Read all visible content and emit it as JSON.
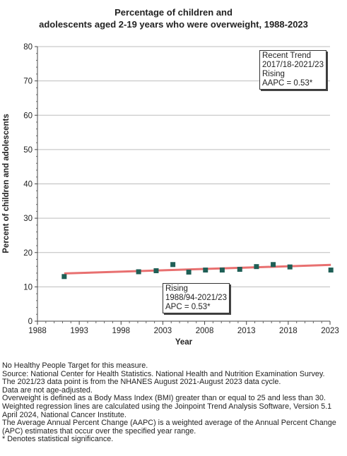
{
  "title_lines": [
    "Percentage of children and",
    "adolescents aged 2-19 years who were overweight, 1988-2023"
  ],
  "chart_data": {
    "type": "scatter",
    "title": "Percentage of children and adolescents aged 2-19 years who were overweight, 1988-2023",
    "xlabel": "Year",
    "ylabel": "Percent of children and adolescents",
    "xlim": [
      1988,
      2023
    ],
    "ylim": [
      0,
      80
    ],
    "x_ticks": [
      "1988",
      "1993",
      "1998",
      "2003",
      "2008",
      "2013",
      "2018",
      "2023"
    ],
    "y_ticks": [
      "0",
      "10",
      "20",
      "30",
      "40",
      "50",
      "60",
      "70",
      "80"
    ],
    "grid": true,
    "points": {
      "x": [
        1991.2,
        2000.1,
        2002.2,
        2004.2,
        2006.1,
        2008.1,
        2010.1,
        2012.2,
        2014.2,
        2016.2,
        2018.2,
        2023.1
      ],
      "y": [
        13.0,
        14.4,
        14.7,
        16.5,
        14.3,
        14.9,
        14.9,
        15.1,
        15.9,
        16.5,
        15.8,
        14.9
      ],
      "color": "#1f5f56"
    },
    "trend_line": {
      "x": [
        1991.2,
        2023.1
      ],
      "y": [
        13.9,
        16.4
      ],
      "color": "#e87070"
    }
  },
  "annotations": {
    "recent": [
      "Recent Trend",
      "2017/18-2021/23",
      "Rising",
      "AAPC =  0.53*"
    ],
    "overall": [
      "Rising",
      "1988/94-2021/23",
      "APC =  0.53*"
    ]
  },
  "notes": [
    "No Healthy People Target for this measure.",
    "Source: National Center for Health Statistics. National Health and Nutrition Examination Survey.",
    "The 2021/23 data point is from the NHANES August 2021-August 2023 data cycle.",
    "Data are not age-adjusted.",
    "Overweight is defined as a Body Mass Index (BMI) greater than or equal to 25 and less than 30.",
    "Weighted regression lines are calculated using the Joinpoint Trend Analysis Software, Version 5.1 April 2024, National Cancer Institute.",
    "The Average Annual Percent Change (AAPC) is a weighted average of the Annual Percent Change (APC) estimates that occur over the specified year range.",
    "* Denotes statistical significance."
  ]
}
